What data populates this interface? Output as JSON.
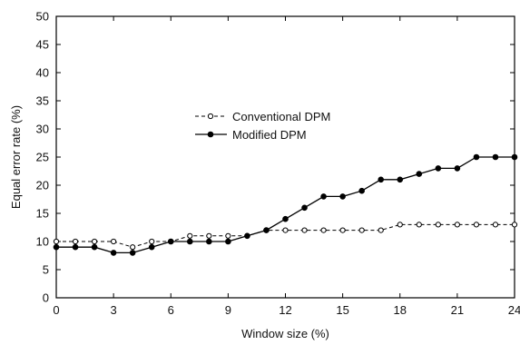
{
  "chart_data": {
    "type": "line",
    "title": "",
    "xlabel": "Window size (%)",
    "ylabel": "Equal error rate (%)",
    "xlim": [
      0,
      24
    ],
    "ylim": [
      0,
      50
    ],
    "xticks": [
      0,
      3,
      6,
      9,
      12,
      15,
      18,
      21,
      24
    ],
    "yticks": [
      0,
      5,
      10,
      15,
      20,
      25,
      30,
      35,
      40,
      45,
      50
    ],
    "grid": false,
    "legend_position": "center",
    "x": [
      0,
      1,
      2,
      3,
      4,
      5,
      6,
      7,
      8,
      9,
      10,
      11,
      12,
      13,
      14,
      15,
      16,
      17,
      18,
      19,
      20,
      21,
      22,
      23,
      24
    ],
    "series": [
      {
        "name": "Conventional DPM",
        "style": "dashed",
        "marker": "open-circle",
        "color": "#000000",
        "values": [
          10,
          10,
          10,
          10,
          9,
          10,
          10,
          11,
          11,
          11,
          11,
          12,
          12,
          12,
          12,
          12,
          12,
          12,
          13,
          13,
          13,
          13,
          13,
          13,
          13
        ]
      },
      {
        "name": "Modified DPM",
        "style": "solid",
        "marker": "filled-circle",
        "color": "#000000",
        "values": [
          9,
          9,
          9,
          8,
          8,
          9,
          10,
          10,
          10,
          10,
          11,
          12,
          14,
          16,
          18,
          18,
          19,
          21,
          21,
          22,
          23,
          23,
          25,
          25,
          25
        ]
      }
    ]
  }
}
